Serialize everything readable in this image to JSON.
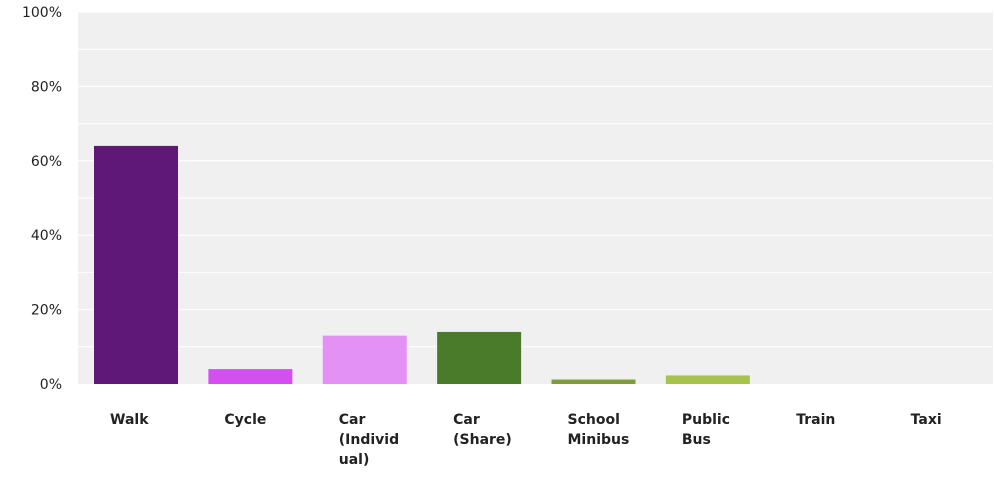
{
  "chart_data": {
    "type": "bar",
    "title": "",
    "xlabel": "",
    "ylabel": "",
    "categories": [
      [
        "Walk"
      ],
      [
        "Cycle"
      ],
      [
        "Car",
        "(Individ",
        "ual)"
      ],
      [
        "Car",
        "(Share)"
      ],
      [
        "School",
        "Minibus"
      ],
      [
        "Public",
        "Bus"
      ],
      [
        "Train"
      ],
      [
        "Taxi"
      ]
    ],
    "values": [
      64,
      4,
      13,
      14,
      1.2,
      2.3,
      0,
      0
    ],
    "colors": [
      "#5f1778",
      "#d44ff0",
      "#e491f6",
      "#4a7b2a",
      "#7e9b3e",
      "#a9c24c",
      "#b7cf5c",
      "#c5d96e"
    ],
    "yticks": [
      "0%",
      "20%",
      "40%",
      "60%",
      "80%",
      "100%"
    ],
    "ylim": [
      0,
      100
    ],
    "grid": true,
    "background": "#f0f0f0",
    "gridline_color": "#ffffff"
  }
}
